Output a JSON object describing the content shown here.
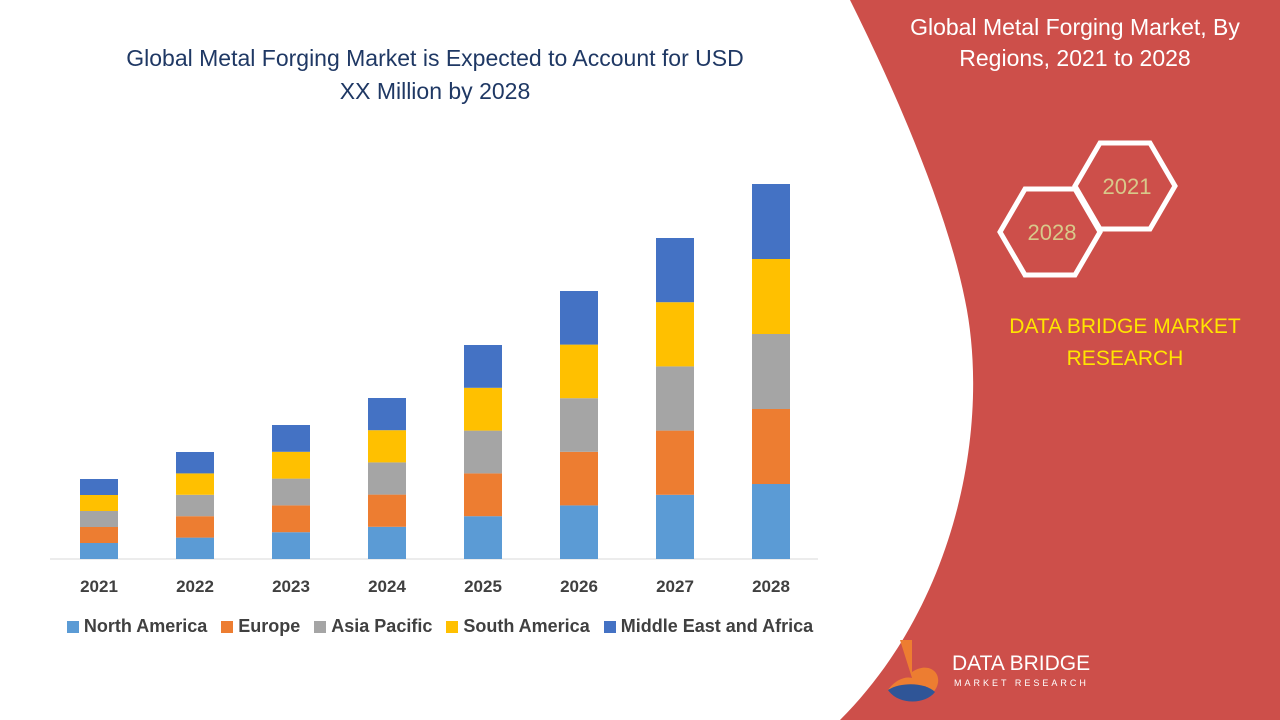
{
  "chart_data": {
    "type": "stacked_bar",
    "title": "Global Metal Forging Market is Expected to Account for USD XX Million by 2028",
    "categories": [
      "2021",
      "2022",
      "2023",
      "2024",
      "2025",
      "2026",
      "2027",
      "2028"
    ],
    "series": [
      {
        "name": "North America",
        "color": "#5b9bd5",
        "values": [
          16,
          21.4,
          26.8,
          32.2,
          42.8,
          53.6,
          64.2,
          75
        ]
      },
      {
        "name": "Europe",
        "color": "#ed7d31",
        "values": [
          16,
          21.4,
          26.8,
          32.2,
          42.8,
          53.6,
          64.2,
          75
        ]
      },
      {
        "name": "Asia Pacific",
        "color": "#a5a5a5",
        "values": [
          16,
          21.4,
          26.8,
          32.2,
          42.8,
          53.6,
          64.2,
          75
        ]
      },
      {
        "name": "South America",
        "color": "#ffc000",
        "values": [
          16,
          21.4,
          26.8,
          32.2,
          42.8,
          53.6,
          64.2,
          75
        ]
      },
      {
        "name": "Middle East and Africa",
        "color": "#4472c4",
        "values": [
          16,
          21.4,
          26.8,
          32.2,
          42.8,
          53.6,
          64.2,
          75
        ]
      }
    ],
    "ylim": [
      0,
      400
    ],
    "legend": "bottom"
  },
  "panel": {
    "title": "Global Metal Forging Market, By Regions, 2021 to 2028",
    "hexagons": [
      "2021",
      "2028"
    ],
    "brand": "DATA BRIDGE MARKET RESEARCH",
    "logo_name": "DATA BRIDGE",
    "logo_tagline": "MARKET RESEARCH"
  }
}
